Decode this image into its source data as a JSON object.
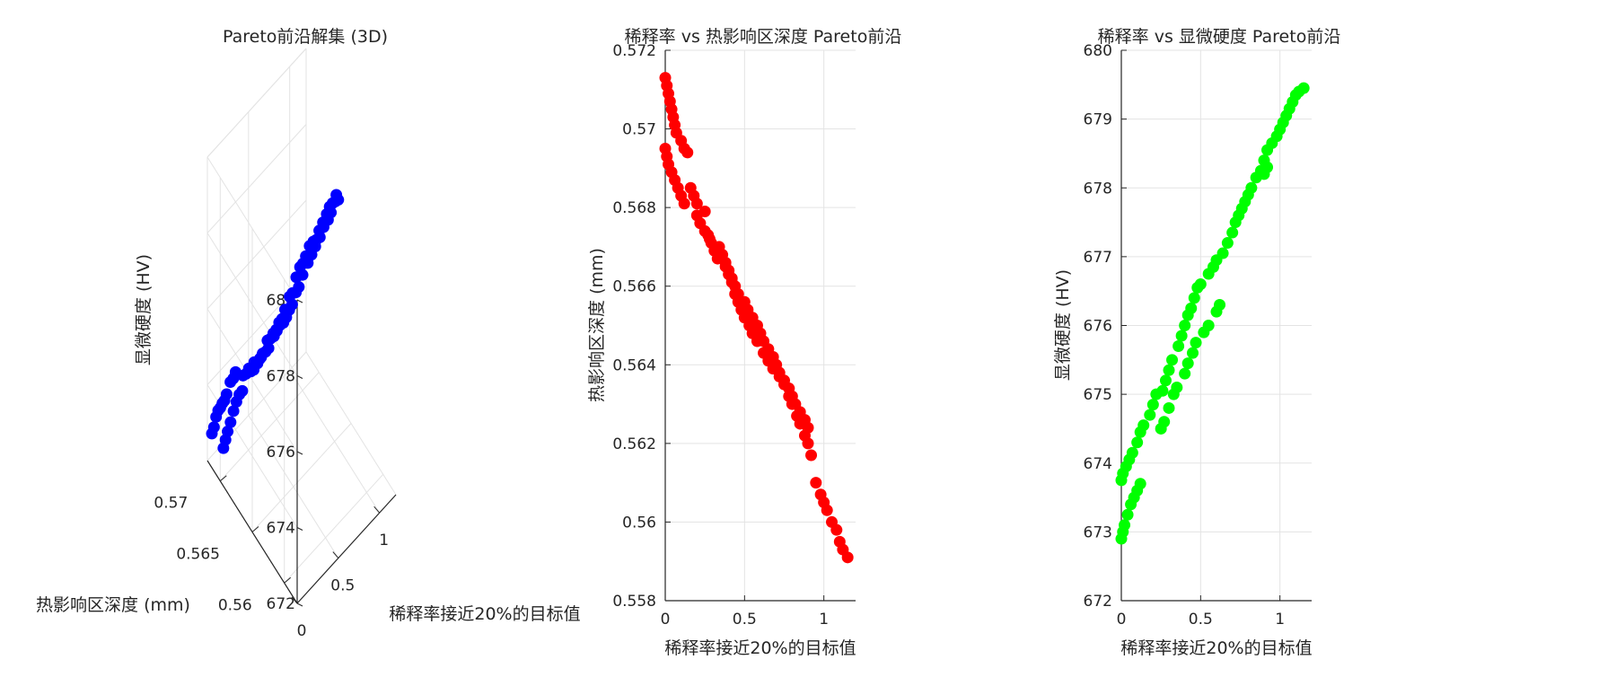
{
  "chart_data": [
    {
      "type": "scatter",
      "title": "Pareto前沿解集 (3D)",
      "xlabel": "稀释率接近20%的目标值",
      "ylabel": "热影响区深度 (mm)",
      "zlabel": "显微硬度 (HV)",
      "xlim": [
        0,
        1.2
      ],
      "ylim": [
        0.558,
        0.572
      ],
      "zlim": [
        672,
        680
      ],
      "x_ticks": [
        "0",
        "0.5",
        "1"
      ],
      "y_ticks": [
        "0.56",
        "0.565",
        "0.57"
      ],
      "z_ticks": [
        "672",
        "674",
        "676",
        "678",
        "680"
      ],
      "grid": true,
      "marker_color": "#0000ff"
    },
    {
      "type": "scatter",
      "title": "稀释率 vs 热影响区深度 Pareto前沿",
      "xlabel": "稀释率接近20%的目标值",
      "ylabel": "热影响区深度 (mm)",
      "xlim": [
        0,
        1.2
      ],
      "ylim": [
        0.558,
        0.572
      ],
      "x_ticks": [
        "0",
        "0.5",
        "1"
      ],
      "y_ticks": [
        "0.558",
        "0.56",
        "0.562",
        "0.564",
        "0.566",
        "0.568",
        "0.57",
        "0.572"
      ],
      "grid": true,
      "marker_color": "#ff0000",
      "x": [
        0.0,
        0.01,
        0.02,
        0.03,
        0.04,
        0.05,
        0.06,
        0.07,
        0.1,
        0.12,
        0.14,
        0.16,
        0.18,
        0.2,
        0.25,
        0.27,
        0.29,
        0.31,
        0.33,
        0.38,
        0.4,
        0.42,
        0.44,
        0.46,
        0.48,
        0.5,
        0.53,
        0.55,
        0.58,
        0.62,
        0.65,
        0.68,
        0.72,
        0.75,
        0.78,
        0.8,
        0.83,
        0.85,
        0.88,
        0.9,
        0.92,
        0.95,
        0.98,
        1.0,
        1.02,
        1.05,
        1.08,
        1.1,
        1.12,
        1.15,
        0.0,
        0.01,
        0.02,
        0.04,
        0.06,
        0.08,
        0.1,
        0.12,
        0.2,
        0.22,
        0.25,
        0.28,
        0.34,
        0.36,
        0.38,
        0.4,
        0.42,
        0.44,
        0.46,
        0.5,
        0.52,
        0.55,
        0.58,
        0.6,
        0.62,
        0.65,
        0.68,
        0.7,
        0.72,
        0.75,
        0.78,
        0.8,
        0.82,
        0.85,
        0.88,
        0.9
      ],
      "y": [
        0.5713,
        0.5711,
        0.5709,
        0.5707,
        0.5705,
        0.5703,
        0.5701,
        0.5699,
        0.5697,
        0.5695,
        0.5694,
        0.5685,
        0.5683,
        0.5681,
        0.5679,
        0.5673,
        0.5671,
        0.5669,
        0.5667,
        0.5665,
        0.5663,
        0.5661,
        0.5658,
        0.5656,
        0.5654,
        0.5652,
        0.565,
        0.5648,
        0.5646,
        0.5643,
        0.5641,
        0.5639,
        0.5637,
        0.5635,
        0.5632,
        0.563,
        0.5627,
        0.5625,
        0.5622,
        0.562,
        0.5617,
        0.561,
        0.5607,
        0.5605,
        0.5603,
        0.56,
        0.5598,
        0.5595,
        0.5593,
        0.5591,
        0.5695,
        0.5693,
        0.5691,
        0.5689,
        0.5687,
        0.5685,
        0.5683,
        0.5681,
        0.5678,
        0.5676,
        0.5674,
        0.5672,
        0.567,
        0.5668,
        0.5666,
        0.5664,
        0.5662,
        0.566,
        0.5658,
        0.5656,
        0.5654,
        0.5652,
        0.565,
        0.5648,
        0.5646,
        0.5644,
        0.5642,
        0.564,
        0.5638,
        0.5636,
        0.5634,
        0.5632,
        0.563,
        0.5628,
        0.5626,
        0.5624
      ]
    },
    {
      "type": "scatter",
      "title": "稀释率 vs 显微硬度 Pareto前沿",
      "xlabel": "稀释率接近20%的目标值",
      "ylabel": "显微硬度 (HV)",
      "xlim": [
        0,
        1.2
      ],
      "ylim": [
        672,
        680
      ],
      "x_ticks": [
        "0",
        "0.5",
        "1"
      ],
      "y_ticks": [
        "672",
        "673",
        "674",
        "675",
        "676",
        "677",
        "678",
        "679",
        "680"
      ],
      "grid": true,
      "marker_color": "#00ff00",
      "x": [
        0.0,
        0.01,
        0.03,
        0.05,
        0.07,
        0.1,
        0.12,
        0.14,
        0.18,
        0.2,
        0.22,
        0.26,
        0.28,
        0.3,
        0.32,
        0.36,
        0.38,
        0.4,
        0.42,
        0.44,
        0.46,
        0.48,
        0.5,
        0.55,
        0.58,
        0.6,
        0.64,
        0.67,
        0.7,
        0.72,
        0.74,
        0.76,
        0.78,
        0.8,
        0.82,
        0.85,
        0.88,
        0.9,
        0.92,
        0.95,
        0.98,
        1.0,
        1.02,
        1.04,
        1.06,
        1.08,
        1.1,
        1.12,
        1.15,
        0.0,
        0.01,
        0.02,
        0.04,
        0.06,
        0.08,
        0.1,
        0.12,
        0.25,
        0.27,
        0.3,
        0.33,
        0.35,
        0.4,
        0.42,
        0.45,
        0.47,
        0.52,
        0.55,
        0.6,
        0.62,
        0.9,
        0.92
      ],
      "y": [
        673.75,
        673.85,
        673.95,
        674.05,
        674.15,
        674.3,
        674.45,
        674.55,
        674.7,
        674.85,
        675.0,
        675.05,
        675.2,
        675.35,
        675.5,
        675.7,
        675.85,
        676.0,
        676.15,
        676.25,
        676.4,
        676.55,
        676.6,
        676.75,
        676.85,
        676.95,
        677.05,
        677.2,
        677.35,
        677.5,
        677.6,
        677.7,
        677.8,
        677.9,
        678.0,
        678.15,
        678.25,
        678.4,
        678.55,
        678.65,
        678.75,
        678.85,
        678.95,
        679.05,
        679.15,
        679.25,
        679.35,
        679.4,
        679.45,
        672.9,
        673.0,
        673.1,
        673.25,
        673.4,
        673.5,
        673.6,
        673.7,
        674.5,
        674.6,
        674.8,
        675.0,
        675.1,
        675.3,
        675.45,
        675.6,
        675.75,
        675.9,
        676.0,
        676.2,
        676.3,
        678.2,
        678.3
      ]
    }
  ]
}
